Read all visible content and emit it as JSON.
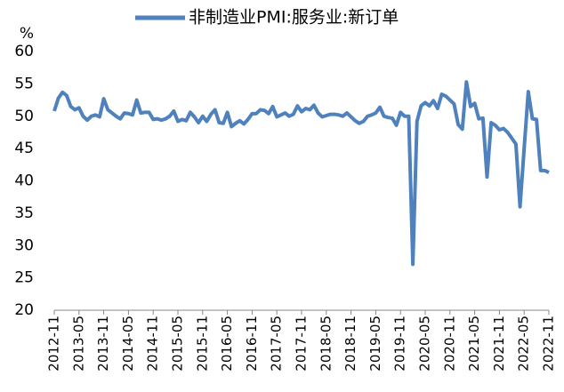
{
  "chart_data": {
    "type": "line",
    "ylabel": "%",
    "categories": [
      "2012-11",
      null,
      null,
      null,
      null,
      null,
      "2013-05",
      null,
      null,
      null,
      null,
      null,
      "2013-11",
      null,
      null,
      null,
      null,
      null,
      "2014-05",
      null,
      null,
      null,
      null,
      null,
      "2014-11",
      null,
      null,
      null,
      null,
      null,
      "2015-05",
      null,
      null,
      null,
      null,
      null,
      "2015-11",
      null,
      null,
      null,
      null,
      null,
      "2016-05",
      null,
      null,
      null,
      null,
      null,
      "2016-11",
      null,
      null,
      null,
      null,
      null,
      "2017-05",
      null,
      null,
      null,
      null,
      null,
      "2017-11",
      null,
      null,
      null,
      null,
      null,
      "2018-05",
      null,
      null,
      null,
      null,
      null,
      "2018-11",
      null,
      null,
      null,
      null,
      null,
      "2019-05",
      null,
      null,
      null,
      null,
      null,
      "2019-11",
      null,
      null,
      null,
      null,
      null,
      "2020-05",
      null,
      null,
      null,
      null,
      null,
      "2020-11",
      null,
      null,
      null,
      null,
      null,
      "2021-05",
      null,
      null,
      null,
      null,
      null,
      "2021-11",
      null,
      null,
      null,
      null,
      null,
      "2022-05",
      null,
      null,
      null,
      null,
      null,
      "2022-11"
    ],
    "series": [
      {
        "name": "非制造业PMI:服务业:新订单",
        "color": "#4f81bd",
        "values": [
          50.8,
          52.8,
          53.7,
          53.2,
          51.5,
          51.0,
          51.3,
          50.0,
          49.4,
          50.0,
          50.2,
          49.9,
          52.7,
          51.0,
          50.5,
          50.0,
          49.6,
          50.5,
          50.4,
          50.2,
          52.5,
          50.5,
          50.6,
          50.6,
          49.5,
          49.6,
          49.4,
          49.6,
          50.0,
          50.8,
          49.2,
          49.5,
          49.3,
          50.6,
          49.9,
          49.0,
          50.0,
          49.2,
          50.3,
          51.0,
          49.0,
          48.9,
          50.6,
          48.4,
          48.9,
          49.3,
          48.8,
          49.5,
          50.4,
          50.4,
          51.0,
          50.9,
          50.4,
          51.5,
          49.9,
          50.2,
          50.5,
          50.0,
          50.3,
          51.6,
          50.7,
          51.2,
          51.0,
          51.7,
          50.5,
          49.9,
          50.1,
          50.3,
          50.3,
          50.2,
          50.0,
          50.5,
          49.9,
          49.3,
          48.9,
          49.2,
          50.0,
          50.2,
          50.5,
          51.4,
          50.0,
          49.8,
          49.7,
          48.6,
          50.6,
          50.0,
          50.0,
          27.1,
          49.2,
          51.6,
          52.1,
          51.6,
          52.4,
          51.2,
          53.4,
          53.1,
          52.5,
          51.9,
          48.7,
          48.0,
          55.3,
          51.5,
          52.0,
          49.6,
          49.7,
          40.6,
          49.0,
          48.6,
          47.9,
          48.1,
          47.5,
          46.6,
          45.7,
          36.0,
          45.0,
          53.8,
          49.6,
          49.5,
          41.6,
          41.6,
          41.3
        ]
      }
    ],
    "ylim": [
      20,
      60
    ],
    "yticks": [
      20,
      25,
      30,
      35,
      40,
      45,
      50,
      55,
      60
    ],
    "legend": "top",
    "grid": false
  }
}
